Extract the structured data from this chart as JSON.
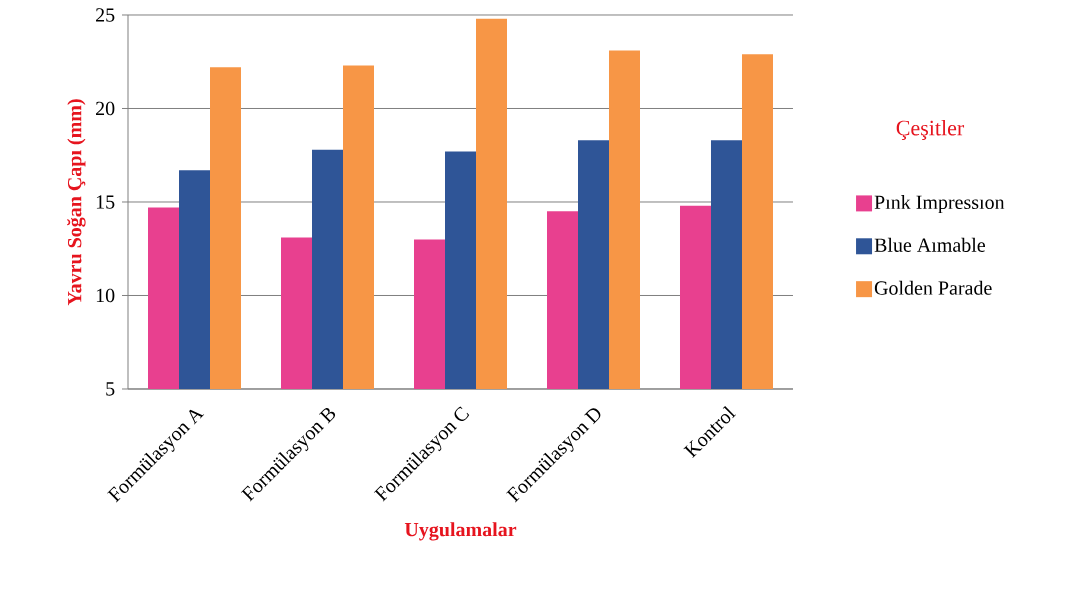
{
  "chart_data": {
    "type": "bar",
    "xlabel": "Uygulamalar",
    "ylabel": "Yavru Soğan Çapı (mm)",
    "legend_title": "Çeşitler",
    "categories": [
      "Formülasyon A",
      "Formülasyon B",
      "Formülasyon C",
      "Formülasyon D",
      "Kontrol"
    ],
    "series": [
      {
        "name": "Pınk Impressıon",
        "color": "#e8408f",
        "values": [
          14.7,
          13.1,
          13.0,
          14.5,
          14.8
        ]
      },
      {
        "name": "Blue Aımable",
        "color": "#2f5597",
        "values": [
          16.7,
          17.8,
          17.7,
          18.3,
          18.3
        ]
      },
      {
        "name": "Golden Parade",
        "color": "#f79646",
        "values": [
          22.2,
          22.3,
          24.8,
          23.1,
          22.9
        ]
      }
    ],
    "ylim": [
      5,
      25
    ],
    "yticks": [
      5,
      10,
      15,
      20,
      25
    ],
    "grid": "y",
    "legend": "right"
  }
}
